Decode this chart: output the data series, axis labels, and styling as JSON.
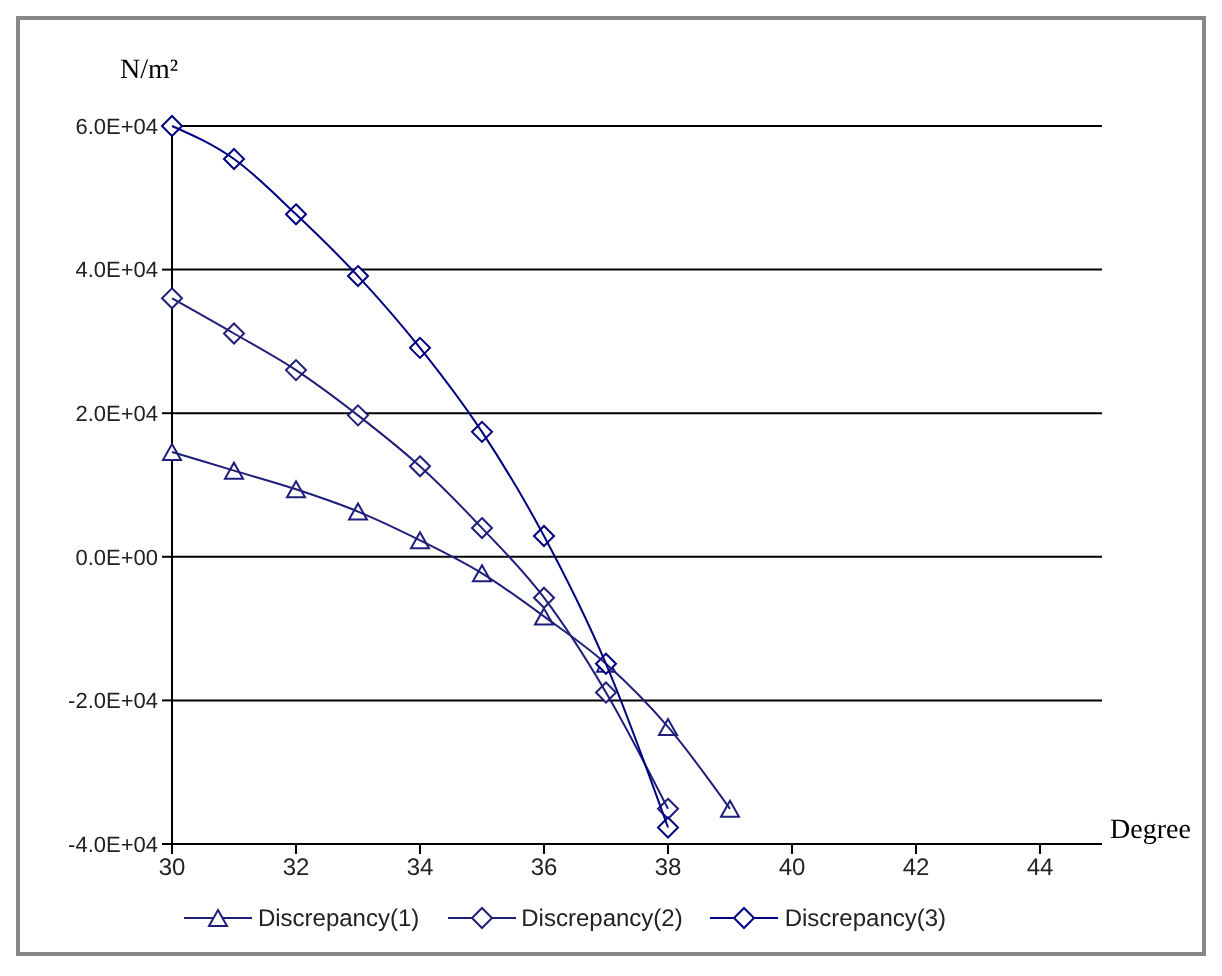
{
  "chart_data": {
    "type": "line",
    "ylabel": "N/m²",
    "xlabel": "Degree",
    "xlim": [
      30,
      45
    ],
    "xticks": [
      30,
      32,
      34,
      36,
      38,
      40,
      42,
      44
    ],
    "ylim": [
      -40000,
      60000
    ],
    "yticks": [
      {
        "value": -40000,
        "label": "-4.0E+04"
      },
      {
        "value": -20000,
        "label": "-2.0E+04"
      },
      {
        "value": 0,
        "label": "0.0E+00"
      },
      {
        "value": 20000,
        "label": "2.0E+04"
      },
      {
        "value": 40000,
        "label": "4.0E+04"
      },
      {
        "value": 60000,
        "label": "6.0E+04"
      }
    ],
    "grid": "y",
    "legend": "bottom",
    "line_style": "solid",
    "series": [
      {
        "name": "Discrepancy(1)",
        "color": "#1f1f7a",
        "marker": "triangle",
        "x": [
          30,
          31,
          32,
          33,
          34,
          35,
          36,
          37,
          38,
          39
        ],
        "values": [
          14600,
          12000,
          9400,
          6300,
          2300,
          -2300,
          -8300,
          -14900,
          -23700,
          -35100
        ]
      },
      {
        "name": "Discrepancy(2)",
        "color": "#1f1f7a",
        "marker": "diamond",
        "x": [
          30,
          31,
          32,
          33,
          34,
          35,
          36,
          37,
          38
        ],
        "values": [
          36000,
          31100,
          26000,
          19700,
          12600,
          4000,
          -5700,
          -18900,
          -35100
        ]
      },
      {
        "name": "Discrepancy(3)",
        "color": "#000080",
        "marker": "diamond",
        "x": [
          30,
          31,
          32,
          33,
          34,
          35,
          36,
          37,
          38
        ],
        "values": [
          60000,
          55400,
          47700,
          39100,
          29100,
          17400,
          2900,
          -14900,
          -37700
        ]
      }
    ]
  }
}
